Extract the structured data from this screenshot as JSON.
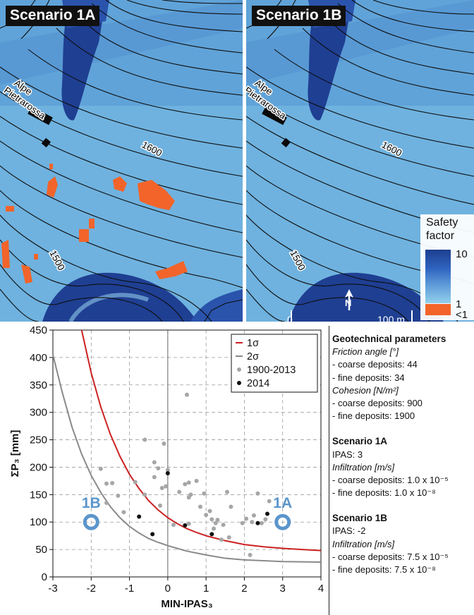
{
  "maps": {
    "left_tag": "Scenario 1A",
    "right_tag": "Scenario 1B",
    "place_label": "Alpe Pietrarossa",
    "contour_label_1600": "1600",
    "contour_label_1500": "1500",
    "scale_zero": "0",
    "scale_label": "100 m",
    "north": "N",
    "legend": {
      "title": "Safety factor",
      "max_label": "10",
      "one_label": "1",
      "lt_label": "<1",
      "colors": [
        "#1d3f8f",
        "#2f63c0",
        "#5e9ad8",
        "#93d0ec",
        "#f2642a"
      ]
    }
  },
  "side_panel": {
    "geo_title": "Geotechnical parameters",
    "friction_title": "Friction angle [°]",
    "friction_coarse": "- coarse deposits: 44",
    "friction_fine": "- fine deposits: 34",
    "cohesion_title": "Cohesion [N/m²]",
    "cohesion_coarse": "- coarse deposits: 900",
    "cohesion_fine": "- fine deposits: 1900",
    "s1a_title": "Scenario 1A",
    "s1a_ipas": "IPAS: 3",
    "s1a_infil_title": "Infiltration [m/s]",
    "s1a_coarse": "- coarse deposits: 1.0 x 10⁻⁵",
    "s1a_fine": "- fine deposits: 1.0 x 10⁻⁸",
    "s1b_title": "Scenario 1B",
    "s1b_ipas": "IPAS: -2",
    "s1b_infil_title": "Infiltration [m/s]",
    "s1b_coarse": "- coarse deposits: 7.5 x 10⁻⁵",
    "s1b_fine": "- fine deposits: 7.5 x 10⁻⁸"
  },
  "chart_data": {
    "type": "scatter",
    "xlabel": "MIN-IPAS₃",
    "ylabel": "ΣP₃ [mm]",
    "xlim": [
      -3,
      4
    ],
    "ylim": [
      0,
      450
    ],
    "xticks": [
      -3,
      -2,
      -1,
      0,
      1,
      2,
      3,
      4
    ],
    "yticks": [
      0,
      50,
      100,
      150,
      200,
      250,
      300,
      350,
      400,
      450
    ],
    "grid": true,
    "legend_position": "top-right",
    "colors": {
      "sigma1": "#cc2222",
      "sigma2": "#8a8a8a",
      "hist": "#a6a6a6",
      "recent": "#111111",
      "scenario": "#5b95cc"
    },
    "series": [
      {
        "name": "1σ",
        "kind": "curve",
        "x": [
          -2.25,
          -2.0,
          -1.75,
          -1.5,
          -1.25,
          -1.0,
          -0.75,
          -0.5,
          -0.25,
          0.0,
          0.25,
          0.5,
          0.75,
          1.0,
          1.5,
          2.0,
          2.5,
          3.0,
          3.5,
          4.0
        ],
        "y": [
          450,
          372,
          310,
          260,
          220,
          187,
          161,
          139,
          122,
          108,
          97,
          88,
          81,
          75,
          66,
          59,
          55,
          52,
          50,
          48
        ]
      },
      {
        "name": "2σ",
        "kind": "curve",
        "x": [
          -3.0,
          -2.75,
          -2.5,
          -2.25,
          -2.0,
          -1.75,
          -1.5,
          -1.25,
          -1.0,
          -0.75,
          -0.5,
          -0.25,
          0.0,
          0.5,
          1.0,
          1.5,
          2.0,
          3.0,
          4.0
        ],
        "y": [
          405,
          335,
          273,
          224,
          185,
          154,
          128,
          108,
          92,
          80,
          70,
          63,
          57,
          47,
          40,
          34,
          31,
          28,
          27
        ]
      },
      {
        "name": "1900-2013",
        "kind": "points",
        "x": [
          -1.75,
          -1.6,
          -1.45,
          -1.6,
          -1.3,
          -0.85,
          -0.6,
          -0.6,
          -0.35,
          -0.35,
          -0.25,
          -0.2,
          -0.1,
          -0.05,
          0.3,
          0.45,
          0.5,
          0.55,
          0.55,
          0.6,
          0.75,
          0.85,
          0.95,
          1.0,
          1.1,
          1.15,
          1.2,
          1.25,
          1.3,
          1.45,
          1.55,
          1.6,
          1.65,
          1.95,
          2.05,
          2.15,
          2.25,
          2.35,
          2.45,
          2.55,
          2.65,
          0.0,
          0.55,
          -0.15,
          2.2,
          1.4,
          -1.15,
          0.15
        ],
        "y": [
          197,
          170,
          171,
          135,
          148,
          173,
          250,
          150,
          209,
          182,
          198,
          130,
          243,
          165,
          155,
          169,
          332,
          172,
          97,
          150,
          175,
          128,
          152,
          113,
          120,
          105,
          88,
          98,
          104,
          95,
          155,
          72,
          128,
          98,
          106,
          40,
          112,
          152,
          98,
          105,
          138,
          195,
          145,
          162,
          100,
          68,
          118,
          95
        ]
      },
      {
        "name": "2014",
        "kind": "points",
        "x": [
          -0.75,
          -0.4,
          0.0,
          0.45,
          1.15,
          2.35,
          2.6
        ],
        "y": [
          110,
          78,
          189,
          94,
          78,
          98,
          115
        ]
      },
      {
        "name": "",
        "kind": "scenario",
        "label": "1B",
        "x": -2,
        "y": 100
      },
      {
        "name": "",
        "kind": "scenario",
        "label": "1A",
        "x": 3,
        "y": 100
      }
    ]
  }
}
